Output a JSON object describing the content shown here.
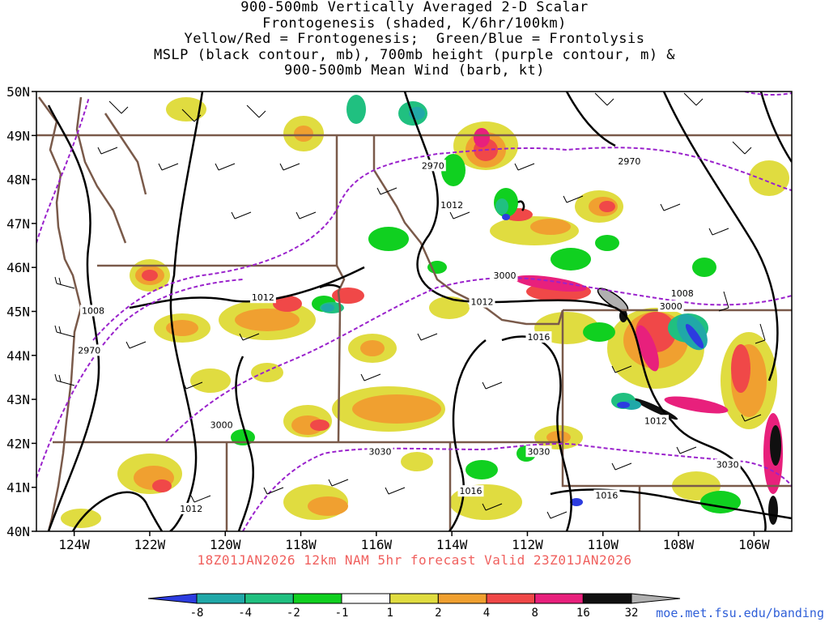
{
  "title": {
    "line1": "900-500mb Vertically Averaged 2-D Scalar",
    "line2": "Frontogenesis (shaded, K/6hr/100km)",
    "line3": "Yellow/Red = Frontogenesis;  Green/Blue = Frontolysis",
    "line4": "MSLP (black contour, mb), 700mb height (purple contour, m) &",
    "line5": "900-500mb Mean Wind (barb, kt)"
  },
  "axes": {
    "lat_labels": [
      "50N",
      "49N",
      "48N",
      "47N",
      "46N",
      "45N",
      "44N",
      "43N",
      "42N",
      "41N",
      "40N"
    ],
    "lon_labels": [
      "124W",
      "122W",
      "120W",
      "118W",
      "116W",
      "114W",
      "112W",
      "110W",
      "108W",
      "106W"
    ]
  },
  "contour_labels": {
    "mslp": [
      {
        "text": "1008",
        "lon": -123.5,
        "lat": 45.0
      },
      {
        "text": "1012",
        "lon": -119.0,
        "lat": 45.3
      },
      {
        "text": "1012",
        "lon": -114.0,
        "lat": 47.4
      },
      {
        "text": "1012",
        "lon": -113.2,
        "lat": 45.2
      },
      {
        "text": "1016",
        "lon": -111.7,
        "lat": 44.4
      },
      {
        "text": "1008",
        "lon": -107.9,
        "lat": 45.4
      },
      {
        "text": "1012",
        "lon": -108.6,
        "lat": 42.5
      },
      {
        "text": "1016",
        "lon": -113.5,
        "lat": 40.9
      },
      {
        "text": "1016",
        "lon": -109.9,
        "lat": 40.8
      },
      {
        "text": "1012",
        "lon": -120.9,
        "lat": 40.5
      }
    ],
    "height700": [
      {
        "text": "2970",
        "lon": -114.5,
        "lat": 48.3
      },
      {
        "text": "2970",
        "lon": -109.3,
        "lat": 48.4
      },
      {
        "text": "2970",
        "lon": -123.6,
        "lat": 44.1
      },
      {
        "text": "3000",
        "lon": -112.6,
        "lat": 45.8
      },
      {
        "text": "3000",
        "lon": -108.2,
        "lat": 45.1
      },
      {
        "text": "3000",
        "lon": -120.1,
        "lat": 42.4
      },
      {
        "text": "3030",
        "lon": -115.9,
        "lat": 41.8
      },
      {
        "text": "3030",
        "lon": -111.7,
        "lat": 41.8
      },
      {
        "text": "3030",
        "lon": -106.7,
        "lat": 41.5
      }
    ]
  },
  "colorbar": {
    "labels": [
      "-8",
      "-4",
      "-2",
      "-1",
      "1",
      "2",
      "4",
      "8",
      "16",
      "32"
    ],
    "colors": [
      "#2c3ce0",
      "#20a8a8",
      "#20c080",
      "#10d020",
      "#ffffff",
      "#e0dc40",
      "#f0a030",
      "#f04848",
      "#e8207c",
      "#101010",
      "#b0b0b0"
    ]
  },
  "footer": "18Z01JAN2026 12km NAM 5hr forecast Valid 23Z01JAN2026",
  "credit": "moe.met.fsu.edu/banding",
  "colors": {
    "border": "#7a5a4a",
    "mslp": "#000000",
    "height": "#9a22cc",
    "footer": "#f0605e",
    "credit": "#2f5fd8"
  }
}
